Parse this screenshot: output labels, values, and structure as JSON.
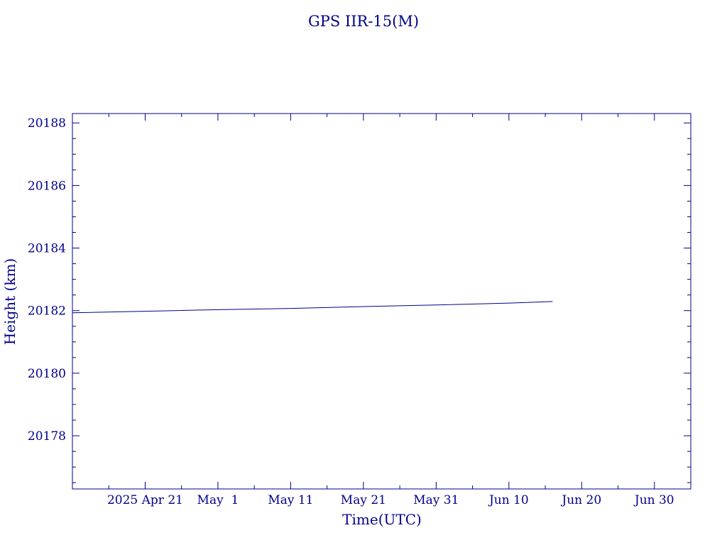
{
  "chart_data": {
    "type": "line",
    "title": "GPS IIR-15(M)",
    "xlabel": "Time(UTC)",
    "ylabel": "Height (km)",
    "color": "#00008b",
    "x_range": [
      "2025-04-11",
      "2025-07-05"
    ],
    "y_range": [
      20176.3,
      20188.3
    ],
    "x_ticks": [
      {
        "date": "2025-04-21",
        "label": "2025 Apr 21"
      },
      {
        "date": "2025-05-01",
        "label": "May  1"
      },
      {
        "date": "2025-05-11",
        "label": "May 11"
      },
      {
        "date": "2025-05-21",
        "label": "May 21"
      },
      {
        "date": "2025-05-31",
        "label": "May 31"
      },
      {
        "date": "2025-06-10",
        "label": "Jun 10"
      },
      {
        "date": "2025-06-20",
        "label": "Jun 20"
      },
      {
        "date": "2025-06-30",
        "label": "Jun 30"
      }
    ],
    "y_ticks": [
      20178,
      20180,
      20182,
      20184,
      20186,
      20188
    ],
    "series": [
      {
        "x": [
          "2025-04-11",
          "2025-04-21",
          "2025-05-01",
          "2025-05-11",
          "2025-05-21",
          "2025-05-31",
          "2025-06-10",
          "2025-06-16"
        ],
        "y": [
          20181.93,
          20181.98,
          20182.03,
          20182.07,
          20182.13,
          20182.18,
          20182.24,
          20182.29
        ]
      }
    ]
  }
}
